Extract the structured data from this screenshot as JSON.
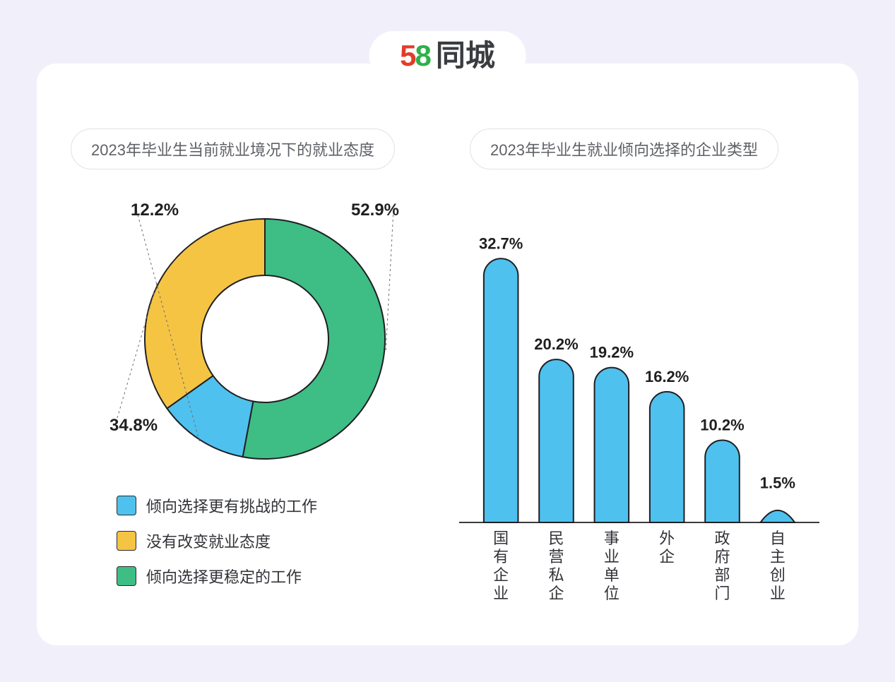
{
  "brand": {
    "digits": "58",
    "text": "同城",
    "color_5": "#e43b2b",
    "color_8_outer": "#2fb14a",
    "color_8_inner": "#f39b15",
    "text_color": "#3a3c40"
  },
  "left_chart": {
    "type": "donut",
    "title": "2023年毕业生当前就业境况下的就业态度",
    "segments": [
      {
        "key": "challenge",
        "value": 12.2,
        "label": "12.2%",
        "color": "#4fc1ee",
        "legend": "倾向选择更有挑战的工作"
      },
      {
        "key": "nochange",
        "value": 34.8,
        "label": "34.8%",
        "color": "#f5c443",
        "legend": "没有改变就业态度"
      },
      {
        "key": "stable",
        "value": 52.9,
        "label": "52.9%",
        "color": "#3ebd85",
        "legend": "倾向选择更稳定的工作"
      }
    ],
    "inner_radius": 90,
    "outer_radius": 170,
    "stroke_color": "#1f1f22",
    "stroke_width": 2,
    "background_color": "#ffffff",
    "label_fontsize": 24,
    "label_fontweight": 700,
    "legend_fontsize": 22,
    "start_angle_deg": -46
  },
  "right_chart": {
    "type": "bar",
    "title": "2023年毕业生就业倾向选择的企业类型",
    "categories": [
      "国有企业",
      "民营私企",
      "事业单位",
      "外企",
      "政府部门",
      "自主创业"
    ],
    "values": [
      32.7,
      20.2,
      19.2,
      16.2,
      10.2,
      1.5
    ],
    "value_labels": [
      "32.7%",
      "20.2%",
      "19.2%",
      "16.2%",
      "10.2%",
      "1.5%"
    ],
    "bar_color": "#4fc1ee",
    "bar_stroke": "#1f1f22",
    "bar_stroke_width": 2,
    "value_fontsize": 22,
    "value_fontweight": 700,
    "category_fontsize": 22,
    "axis_color": "#3a3a3f",
    "y_max": 35,
    "bar_count": 6
  },
  "page": {
    "bg": "#f1f0fa",
    "card_bg": "#ffffff",
    "title_text_color": "#5f6167",
    "title_fontsize": 22
  }
}
